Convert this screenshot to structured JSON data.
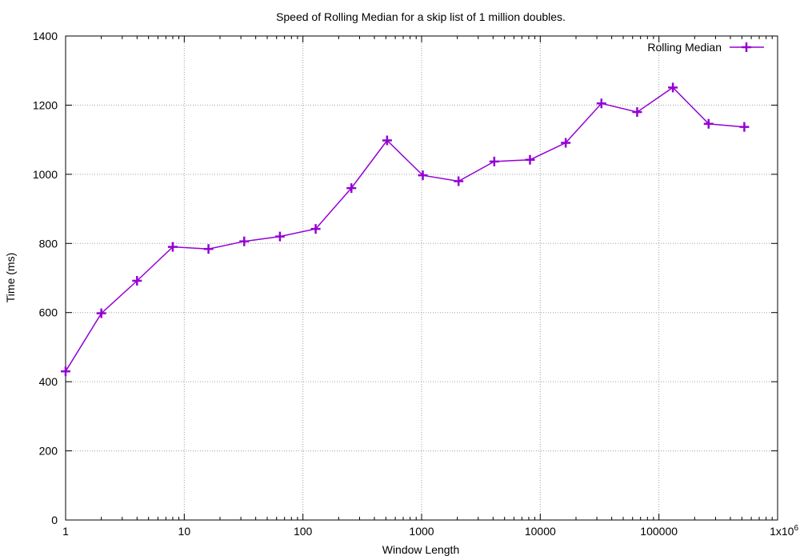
{
  "chart_data": {
    "type": "line",
    "title": "Speed of Rolling Median for a skip list of 1 million doubles.",
    "xlabel": "Window Length",
    "ylabel": "Time (ms)",
    "x_scale": "log10",
    "xlim": [
      1,
      1000000
    ],
    "ylim": [
      0,
      1400
    ],
    "grid": true,
    "legend_position": "top-right",
    "x_ticks": [
      {
        "value": 1,
        "label": "1"
      },
      {
        "value": 10,
        "label": "10"
      },
      {
        "value": 100,
        "label": "100"
      },
      {
        "value": 1000,
        "label": "1000"
      },
      {
        "value": 10000,
        "label": "10000"
      },
      {
        "value": 100000,
        "label": "100000"
      },
      {
        "value": 1000000,
        "label": "1x10",
        "superscript": "6"
      }
    ],
    "y_ticks": [
      0,
      200,
      400,
      600,
      800,
      1000,
      1200,
      1400
    ],
    "series": [
      {
        "name": "Rolling Median",
        "color": "#9400d3",
        "marker": "plus",
        "x": [
          1,
          2,
          4,
          8,
          16,
          32,
          64,
          128,
          256,
          512,
          1024,
          2048,
          4096,
          8192,
          16384,
          32768,
          65536,
          131072,
          262144,
          524288
        ],
        "y": [
          430,
          598,
          692,
          790,
          784,
          806,
          820,
          842,
          960,
          1098,
          997,
          980,
          1037,
          1042,
          1091,
          1205,
          1180,
          1251,
          1146,
          1137
        ]
      }
    ]
  }
}
